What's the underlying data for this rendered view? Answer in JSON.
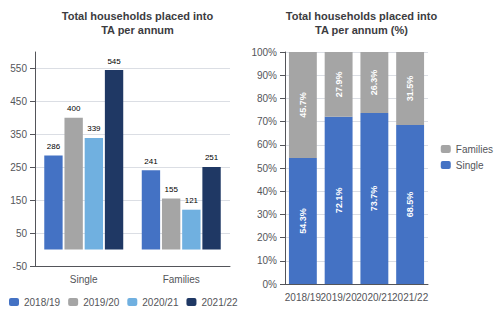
{
  "chart_data": [
    {
      "type": "bar",
      "title": "Total households placed into\nTA per annum",
      "categories": [
        "Single",
        "Families"
      ],
      "series": [
        {
          "name": "2018/19",
          "color": "#4472c4",
          "values": [
            286,
            241
          ]
        },
        {
          "name": "2019/20",
          "color": "#a5a5a5",
          "values": [
            400,
            155
          ]
        },
        {
          "name": "2020/21",
          "color": "#70b0e0",
          "values": [
            339,
            121
          ]
        },
        {
          "name": "2021/22",
          "color": "#1f3864",
          "values": [
            545,
            251
          ]
        }
      ],
      "ylim": [
        -50,
        600
      ],
      "yticks": [
        -50,
        50,
        150,
        250,
        350,
        450,
        550
      ],
      "grid": true,
      "data_labels": true,
      "legend": "bottom"
    },
    {
      "type": "bar",
      "title": "Total households placed into\nTA per annum (%)",
      "categories": [
        "2018/19",
        "2019/20",
        "2020/21",
        "2021/22"
      ],
      "stacked": true,
      "series": [
        {
          "name": "Single",
          "color": "#4472c4",
          "values": [
            54.3,
            72.1,
            73.7,
            68.5
          ],
          "value_labels": [
            "54.3%",
            "72.1%",
            "73.7%",
            "68.5%"
          ]
        },
        {
          "name": "Families",
          "color": "#a5a5a5",
          "values": [
            45.7,
            27.9,
            26.3,
            31.5
          ],
          "value_labels": [
            "45.7%",
            "27.9%",
            "26.3%",
            "31.5%"
          ]
        }
      ],
      "ylim": [
        0,
        100
      ],
      "yticks": [
        {
          "value": 0,
          "label": "0%"
        },
        {
          "value": 10,
          "label": "10%"
        },
        {
          "value": 20,
          "label": "20%"
        },
        {
          "value": 30,
          "label": "30%"
        },
        {
          "value": 40,
          "label": "40%"
        },
        {
          "value": 50,
          "label": "50%"
        },
        {
          "value": 60,
          "label": "60%"
        },
        {
          "value": 70,
          "label": "70%"
        },
        {
          "value": 80,
          "label": "80%"
        },
        {
          "value": 90,
          "label": "90%"
        },
        {
          "value": 100,
          "label": "100%"
        }
      ],
      "grid": true,
      "data_labels": true,
      "legend": "right"
    }
  ]
}
